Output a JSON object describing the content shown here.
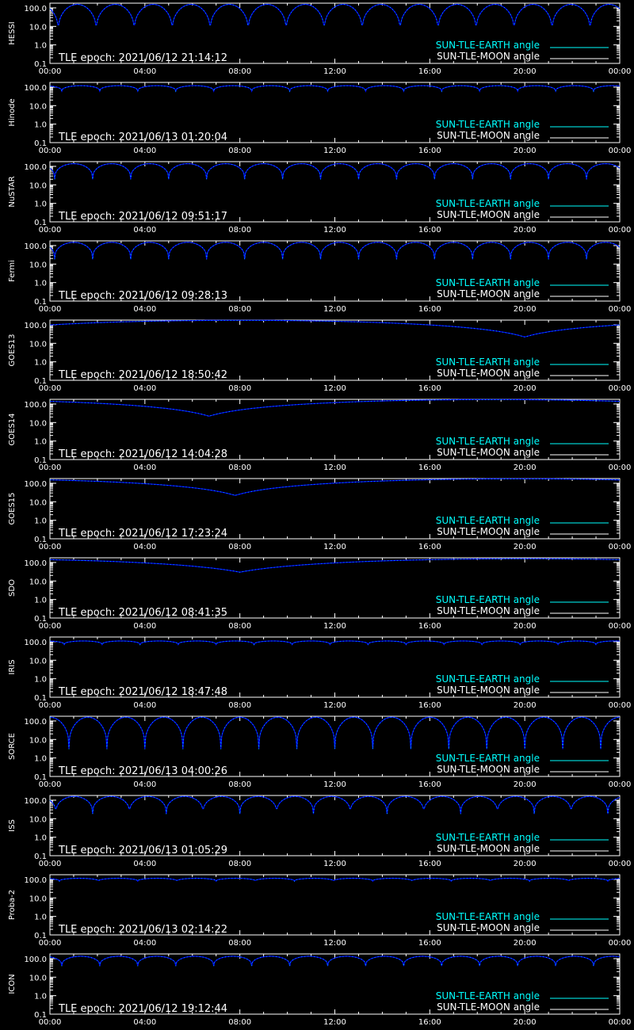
{
  "colors": {
    "background": "#000000",
    "axes": "#ffffff",
    "earth_series": "#00ffff",
    "moon_series": "#ffffff",
    "series_dark": "#0000ff"
  },
  "chart_data": [
    {
      "type": "line",
      "satellite": "HESSI",
      "epoch_label": "TLE epoch: 2021/06/12 21:14:12",
      "legend": [
        "SUN-TLE-EARTH angle",
        "SUN-TLE-MOON angle"
      ],
      "x_ticks": [
        "00:00",
        "04:00",
        "08:00",
        "12:00",
        "16:00",
        "20:00",
        "00:00"
      ],
      "y_ticks": [
        "100.0",
        "10.0",
        "1.0",
        "0.1"
      ],
      "ylim": [
        0.1,
        180
      ],
      "y_scale": "log",
      "pattern": "periodic",
      "period_hours": 1.6,
      "min_deg": 4,
      "max_deg": 155,
      "phase_hours": 0.35
    },
    {
      "type": "line",
      "satellite": "Hinode",
      "epoch_label": "TLE epoch: 2021/06/13 01:20:04",
      "legend": [
        "SUN-TLE-EARTH angle",
        "SUN-TLE-MOON angle"
      ],
      "x_ticks": [
        "00:00",
        "04:00",
        "08:00",
        "12:00",
        "16:00",
        "20:00",
        "00:00"
      ],
      "y_ticks": [
        "100.0",
        "10.0",
        "1.0",
        "0.1"
      ],
      "ylim": [
        0.1,
        180
      ],
      "y_scale": "log",
      "pattern": "periodic",
      "period_hours": 1.6,
      "min_deg": 60,
      "max_deg": 120,
      "phase_hours": 0.5
    },
    {
      "type": "line",
      "satellite": "NuSTAR",
      "epoch_label": "TLE epoch: 2021/06/12 09:51:17",
      "legend": [
        "SUN-TLE-EARTH angle",
        "SUN-TLE-MOON angle"
      ],
      "x_ticks": [
        "00:00",
        "04:00",
        "08:00",
        "12:00",
        "16:00",
        "20:00",
        "00:00"
      ],
      "y_ticks": [
        "100.0",
        "10.0",
        "1.0",
        "0.1"
      ],
      "ylim": [
        0.1,
        180
      ],
      "y_scale": "log",
      "pattern": "periodic",
      "period_hours": 1.6,
      "min_deg": 20,
      "max_deg": 140,
      "phase_hours": 0.2
    },
    {
      "type": "line",
      "satellite": "Fermi",
      "epoch_label": "TLE epoch: 2021/06/12 09:28:13",
      "legend": [
        "SUN-TLE-EARTH angle",
        "SUN-TLE-MOON angle"
      ],
      "x_ticks": [
        "00:00",
        "04:00",
        "08:00",
        "12:00",
        "16:00",
        "20:00",
        "00:00"
      ],
      "y_ticks": [
        "100.0",
        "10.0",
        "1.0",
        "0.1"
      ],
      "ylim": [
        0.1,
        180
      ],
      "y_scale": "log",
      "pattern": "periodic",
      "period_hours": 1.6,
      "min_deg": 18,
      "max_deg": 150,
      "phase_hours": 0.2
    },
    {
      "type": "line",
      "satellite": "GOES13",
      "epoch_label": "TLE epoch: 2021/06/12 18:50:42",
      "legend": [
        "SUN-TLE-EARTH angle",
        "SUN-TLE-MOON angle"
      ],
      "x_ticks": [
        "00:00",
        "04:00",
        "08:00",
        "12:00",
        "16:00",
        "20:00",
        "00:00"
      ],
      "y_ticks": [
        "100.0",
        "10.0",
        "1.0",
        "0.1"
      ],
      "ylim": [
        0.1,
        180
      ],
      "y_scale": "log",
      "pattern": "daily",
      "min_deg": 22,
      "max_deg": 175,
      "min_hour": 20.0
    },
    {
      "type": "line",
      "satellite": "GOES14",
      "epoch_label": "TLE epoch: 2021/06/12 14:04:28",
      "legend": [
        "SUN-TLE-EARTH angle",
        "SUN-TLE-MOON angle"
      ],
      "x_ticks": [
        "00:00",
        "04:00",
        "08:00",
        "12:00",
        "16:00",
        "20:00",
        "00:00"
      ],
      "y_ticks": [
        "100.0",
        "10.0",
        "1.0",
        "0.1"
      ],
      "ylim": [
        0.1,
        180
      ],
      "y_scale": "log",
      "pattern": "daily",
      "min_deg": 22,
      "max_deg": 175,
      "min_hour": 6.7
    },
    {
      "type": "line",
      "satellite": "GOES15",
      "epoch_label": "TLE epoch: 2021/06/12 17:23:24",
      "legend": [
        "SUN-TLE-EARTH angle",
        "SUN-TLE-MOON angle"
      ],
      "x_ticks": [
        "00:00",
        "04:00",
        "08:00",
        "12:00",
        "16:00",
        "20:00",
        "00:00"
      ],
      "y_ticks": [
        "100.0",
        "10.0",
        "1.0",
        "0.1"
      ],
      "ylim": [
        0.1,
        180
      ],
      "y_scale": "log",
      "pattern": "daily",
      "min_deg": 22,
      "max_deg": 175,
      "min_hour": 7.8
    },
    {
      "type": "line",
      "satellite": "SDO",
      "epoch_label": "TLE epoch: 2021/06/12 08:41:35",
      "legend": [
        "SUN-TLE-EARTH angle",
        "SUN-TLE-MOON angle"
      ],
      "x_ticks": [
        "00:00",
        "04:00",
        "08:00",
        "12:00",
        "16:00",
        "20:00",
        "00:00"
      ],
      "y_ticks": [
        "100.0",
        "10.0",
        "1.0",
        "0.1"
      ],
      "ylim": [
        0.1,
        180
      ],
      "y_scale": "log",
      "pattern": "daily",
      "min_deg": 30,
      "max_deg": 160,
      "min_hour": 8.0
    },
    {
      "type": "line",
      "satellite": "IRIS",
      "epoch_label": "TLE epoch: 2021/06/12 18:47:48",
      "legend": [
        "SUN-TLE-EARTH angle",
        "SUN-TLE-MOON angle"
      ],
      "x_ticks": [
        "00:00",
        "04:00",
        "08:00",
        "12:00",
        "16:00",
        "20:00",
        "00:00"
      ],
      "y_ticks": [
        "100.0",
        "10.0",
        "1.0",
        "0.1"
      ],
      "ylim": [
        0.1,
        180
      ],
      "y_scale": "log",
      "pattern": "periodic",
      "period_hours": 1.6,
      "min_deg": 70,
      "max_deg": 110,
      "phase_hours": 0.6
    },
    {
      "type": "line",
      "satellite": "SORCE",
      "epoch_label": "TLE epoch: 2021/06/13 04:00:26",
      "legend": [
        "SUN-TLE-EARTH angle",
        "SUN-TLE-MOON angle"
      ],
      "x_ticks": [
        "00:00",
        "04:00",
        "08:00",
        "12:00",
        "16:00",
        "20:00",
        "00:00"
      ],
      "y_ticks": [
        "100.0",
        "10.0",
        "1.0",
        "0.1"
      ],
      "ylim": [
        0.1,
        180
      ],
      "y_scale": "log",
      "pattern": "periodic",
      "period_hours": 1.6,
      "min_deg": 3,
      "max_deg": 160,
      "phase_hours": 0.8
    },
    {
      "type": "line",
      "satellite": "ISS",
      "epoch_label": "TLE epoch: 2021/06/13 01:05:29",
      "legend": [
        "SUN-TLE-EARTH angle",
        "SUN-TLE-MOON angle"
      ],
      "x_ticks": [
        "00:00",
        "04:00",
        "08:00",
        "12:00",
        "16:00",
        "20:00",
        "00:00"
      ],
      "y_ticks": [
        "100.0",
        "10.0",
        "1.0",
        "0.1"
      ],
      "ylim": [
        0.1,
        180
      ],
      "y_scale": "log",
      "pattern": "periodic",
      "period_hours": 1.55,
      "min_deg": 18,
      "max_deg": 160,
      "phase_hours": 0.25
    },
    {
      "type": "line",
      "satellite": "Proba-2",
      "epoch_label": "TLE epoch: 2021/06/13 02:14:22",
      "legend": [
        "SUN-TLE-EARTH angle",
        "SUN-TLE-MOON angle"
      ],
      "x_ticks": [
        "00:00",
        "04:00",
        "08:00",
        "12:00",
        "16:00",
        "20:00",
        "00:00"
      ],
      "y_ticks": [
        "100.0",
        "10.0",
        "1.0",
        "0.1"
      ],
      "ylim": [
        0.1,
        180
      ],
      "y_scale": "log",
      "pattern": "periodic",
      "period_hours": 1.65,
      "min_deg": 80,
      "max_deg": 115,
      "phase_hours": 0.4
    },
    {
      "type": "line",
      "satellite": "ICON",
      "epoch_label": "TLE epoch: 2021/06/12 19:12:44",
      "legend": [
        "SUN-TLE-EARTH angle",
        "SUN-TLE-MOON angle"
      ],
      "x_ticks": [
        "00:00",
        "04:00",
        "08:00",
        "12:00",
        "16:00",
        "20:00",
        "00:00"
      ],
      "y_ticks": [
        "100.0",
        "10.0",
        "1.0",
        "0.1"
      ],
      "ylim": [
        0.1,
        180
      ],
      "y_scale": "log",
      "pattern": "periodic",
      "period_hours": 1.6,
      "min_deg": 40,
      "max_deg": 135,
      "phase_hours": 0.5
    }
  ]
}
